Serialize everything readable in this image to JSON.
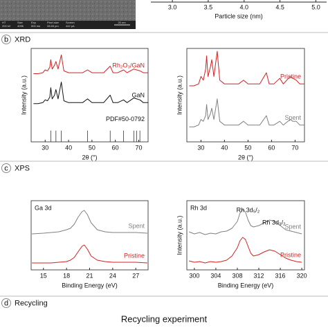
{
  "tem": {
    "fields": [
      [
        "HT",
        "200 kV"
      ],
      [
        "Size",
        "4096"
      ],
      [
        "Exp",
        "500 ms"
      ],
      [
        "Pixel size",
        "28.65 pm"
      ],
      [
        "Screen",
        "442 pA"
      ]
    ],
    "scale_bar": "20 nm"
  },
  "sections": [
    {
      "letter": "b",
      "title": "XRD"
    },
    {
      "letter": "c",
      "title": "XPS"
    },
    {
      "letter": "d",
      "title": "Recycling"
    }
  ],
  "recycling_title": "Recycling experiment",
  "chart_data": [
    {
      "type": "bar",
      "x_label": "Particle size (nm)",
      "xlim": [
        2.7,
        5.15
      ],
      "xticks": [
        {
          "value": 3,
          "label": "3.0"
        },
        {
          "value": 3.5,
          "label": "3.5"
        },
        {
          "value": 4,
          "label": "4.0"
        },
        {
          "value": 4.5,
          "label": "4.5"
        },
        {
          "value": 5,
          "label": "5.0"
        }
      ]
    },
    {
      "type": "line",
      "x_label": "2θ (°)",
      "y_label": "Intensity (a.u.)",
      "xlim": [
        24,
        74
      ],
      "ylim": [
        0,
        100
      ],
      "xticks": [
        30,
        40,
        50,
        60,
        70
      ],
      "x": [
        25,
        27,
        29,
        30,
        31,
        32,
        32.4,
        33,
        34,
        34.6,
        35.5,
        36.9,
        38,
        40,
        43,
        46,
        48.1,
        50,
        53,
        55,
        57.8,
        59,
        61,
        63.5,
        65,
        67.9,
        69.1,
        70.5,
        72,
        74
      ],
      "series": [
        {
          "name": "Rh₂O₃/GaN",
          "color": "#d42020",
          "values": [
            73,
            73,
            74,
            77,
            76,
            80,
            88,
            78,
            82,
            86,
            78,
            93,
            76,
            74,
            74,
            74,
            77,
            74,
            74,
            74,
            81,
            74,
            74,
            77,
            74,
            78,
            77,
            76,
            74,
            74
          ]
        },
        {
          "name": "GaN",
          "color": "#111111",
          "values": [
            41,
            41,
            42,
            45,
            44,
            48,
            58,
            46,
            50,
            56,
            46,
            64,
            44,
            42,
            42,
            42,
            46,
            42,
            42,
            42,
            50,
            42,
            42,
            45,
            42,
            47,
            46,
            45,
            42,
            42
          ]
        }
      ],
      "reference": {
        "name": "PDF#50-0792",
        "color": "#333333",
        "x": [
          32.4,
          34.6,
          36.9,
          48.1,
          57.8,
          63.5,
          67.9,
          69.1,
          70.5
        ],
        "values": [
          12,
          12,
          12,
          12,
          12,
          12,
          12,
          12,
          12
        ]
      }
    },
    {
      "type": "line",
      "x_label": "2θ (°)",
      "y_label": "Intensity (a.u.)",
      "xlim": [
        24,
        74
      ],
      "ylim": [
        0,
        100
      ],
      "xticks": [
        30,
        40,
        50,
        60,
        70
      ],
      "x": [
        25,
        27,
        29,
        30,
        31,
        32,
        32.4,
        33,
        34,
        34.6,
        35.5,
        36.9,
        38,
        40,
        43,
        46,
        48.1,
        50,
        53,
        55,
        57.8,
        59,
        61,
        63.5,
        65,
        67.9,
        69.1,
        70.5,
        72,
        74
      ],
      "series": [
        {
          "name": "Pristine",
          "color": "#d42020",
          "values": [
            60,
            60,
            62,
            70,
            66,
            78,
            92,
            70,
            80,
            88,
            70,
            97,
            66,
            62,
            62,
            62,
            66,
            62,
            62,
            62,
            74,
            62,
            62,
            68,
            62,
            70,
            68,
            66,
            62,
            62
          ]
        },
        {
          "name": "Spent",
          "color": "#808080",
          "values": [
            16,
            16,
            18,
            24,
            22,
            28,
            40,
            24,
            30,
            36,
            24,
            46,
            22,
            18,
            18,
            18,
            22,
            18,
            18,
            18,
            28,
            18,
            18,
            22,
            18,
            24,
            22,
            22,
            18,
            18
          ]
        }
      ]
    },
    {
      "type": "line",
      "title": "Ga 3d",
      "x_label": "Binding Energy (eV)",
      "xlim": [
        13.4,
        28.6
      ],
      "ylim": [
        0,
        100
      ],
      "xticks": [
        15,
        18,
        21,
        24,
        27
      ],
      "x": [
        13.5,
        15,
        16,
        17,
        18,
        18.5,
        19,
        19.5,
        20,
        20.3,
        20.7,
        21.2,
        22,
        23,
        24,
        25,
        26,
        27,
        28.5
      ],
      "series": [
        {
          "name": "Spent",
          "color": "#808080",
          "values": [
            52,
            53,
            54,
            55,
            58,
            60,
            66,
            76,
            84,
            86,
            80,
            68,
            58,
            55,
            54,
            54,
            54,
            54,
            53
          ]
        },
        {
          "name": "Pristine",
          "color": "#d42020",
          "values": [
            10,
            10,
            10,
            11,
            12,
            14,
            18,
            26,
            34,
            36,
            30,
            20,
            14,
            12,
            11,
            11,
            11,
            11,
            10
          ]
        }
      ]
    },
    {
      "type": "line",
      "title": "Rh 3d",
      "x_label": "Binding Energy (eV)",
      "y_label": "Intensity (a.u.)",
      "xlim": [
        298.6,
        320.5
      ],
      "ylim": [
        0,
        100
      ],
      "xticks": [
        300,
        304,
        308,
        312,
        316,
        320
      ],
      "annotations": [
        "Rh 3d₅/₂",
        "Rh 3d₃/₂"
      ],
      "x": [
        299,
        300,
        301,
        302,
        303,
        304,
        305,
        306,
        307,
        308,
        308.5,
        309,
        309.5,
        310,
        310.5,
        311,
        312,
        313,
        314,
        315,
        316,
        317,
        318,
        319,
        320
      ],
      "series": [
        {
          "name": "Spent",
          "color": "#808080",
          "values": [
            55,
            52,
            54,
            51,
            53,
            52,
            55,
            56,
            60,
            70,
            82,
            87,
            84,
            72,
            64,
            62,
            64,
            68,
            72,
            70,
            64,
            58,
            56,
            54,
            52
          ]
        },
        {
          "name": "Pristine",
          "color": "#d42020",
          "values": [
            13,
            11,
            12,
            10,
            12,
            11,
            12,
            14,
            20,
            32,
            42,
            47,
            44,
            34,
            24,
            20,
            22,
            26,
            29,
            27,
            22,
            17,
            14,
            12,
            11
          ]
        }
      ]
    }
  ]
}
